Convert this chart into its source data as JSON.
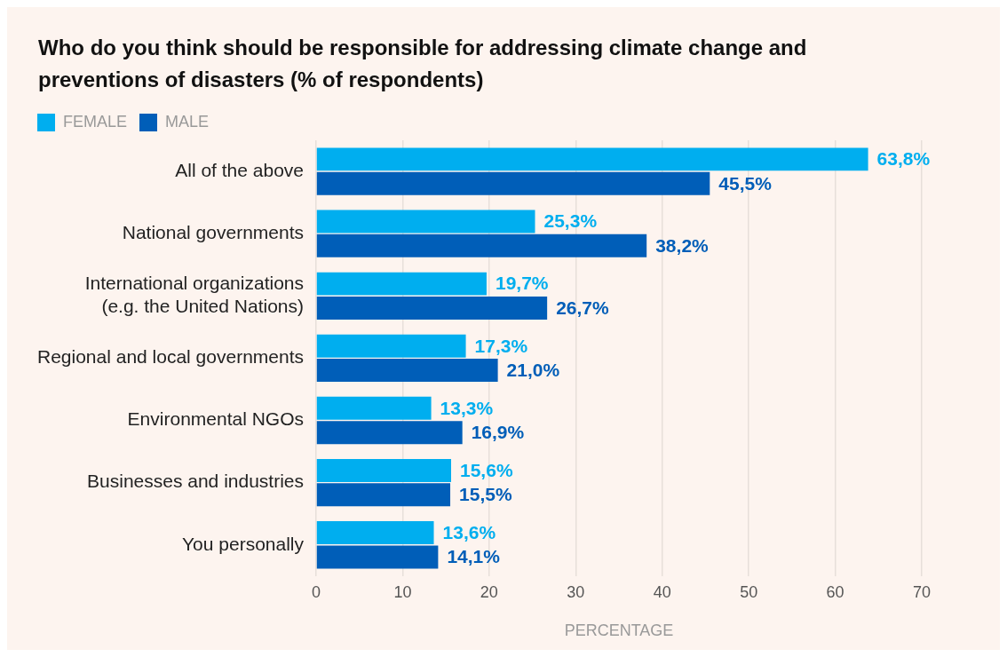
{
  "chart_data": {
    "type": "bar",
    "orientation": "horizontal",
    "title": "Who do you think should be responsible for addressing climate change and preventions of disasters (% of respondents)",
    "xlabel": "PERCENTAGE",
    "categories": [
      "All of the above",
      "National governments",
      "International organizations\n(e.g. the United Nations)",
      "Regional and local governments",
      "Environmental NGOs",
      "Businesses and industries",
      "You personally"
    ],
    "series": [
      {
        "name": "FEMALE",
        "color": "#00aeef",
        "values": [
          63.8,
          25.3,
          19.7,
          17.3,
          13.3,
          15.6,
          13.6
        ],
        "value_labels": [
          "63,8%",
          "25,3%",
          "19,7%",
          "17,3%",
          "13,3%",
          "15,6%",
          "13,6%"
        ]
      },
      {
        "name": "MALE",
        "color": "#005eb8",
        "values": [
          45.5,
          38.2,
          26.7,
          21.0,
          16.9,
          15.5,
          14.1
        ],
        "value_labels": [
          "45,5%",
          "38,2%",
          "26,7%",
          "21,0%",
          "16,9%",
          "15,5%",
          "14,1%"
        ]
      }
    ],
    "xlim": [
      0,
      70
    ],
    "xticks": [
      0,
      10,
      20,
      30,
      40,
      50,
      60,
      70
    ],
    "grid": "x",
    "legend": "top left"
  }
}
